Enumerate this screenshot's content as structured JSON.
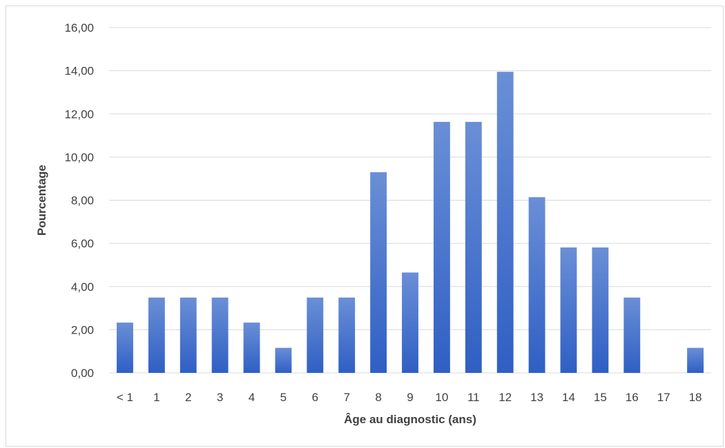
{
  "chart_data": {
    "type": "bar",
    "title": "",
    "xlabel": "Âge au diagnostic (ans)",
    "ylabel": "Pourcentage",
    "categories": [
      "< 1",
      "1",
      "2",
      "3",
      "4",
      "5",
      "6",
      "7",
      "8",
      "9",
      "10",
      "11",
      "12",
      "13",
      "14",
      "15",
      "16",
      "17",
      "18"
    ],
    "values": [
      2.33,
      3.49,
      3.49,
      3.49,
      2.33,
      1.16,
      3.49,
      3.49,
      9.3,
      4.65,
      11.63,
      11.63,
      13.95,
      8.14,
      5.81,
      5.81,
      3.49,
      0.0,
      1.16
    ],
    "ylim": [
      0,
      16
    ],
    "yticks": [
      "0,00",
      "2,00",
      "4,00",
      "6,00",
      "8,00",
      "10,00",
      "12,00",
      "14,00",
      "16,00"
    ],
    "ytick_values": [
      0,
      2,
      4,
      6,
      8,
      10,
      12,
      14,
      16
    ],
    "grid": true,
    "legend": "none",
    "colors": {
      "bar_top": "#6a8fd6",
      "bar_bottom": "#2f5fc4",
      "grid": "#d9d9d9",
      "text": "#404040"
    }
  }
}
